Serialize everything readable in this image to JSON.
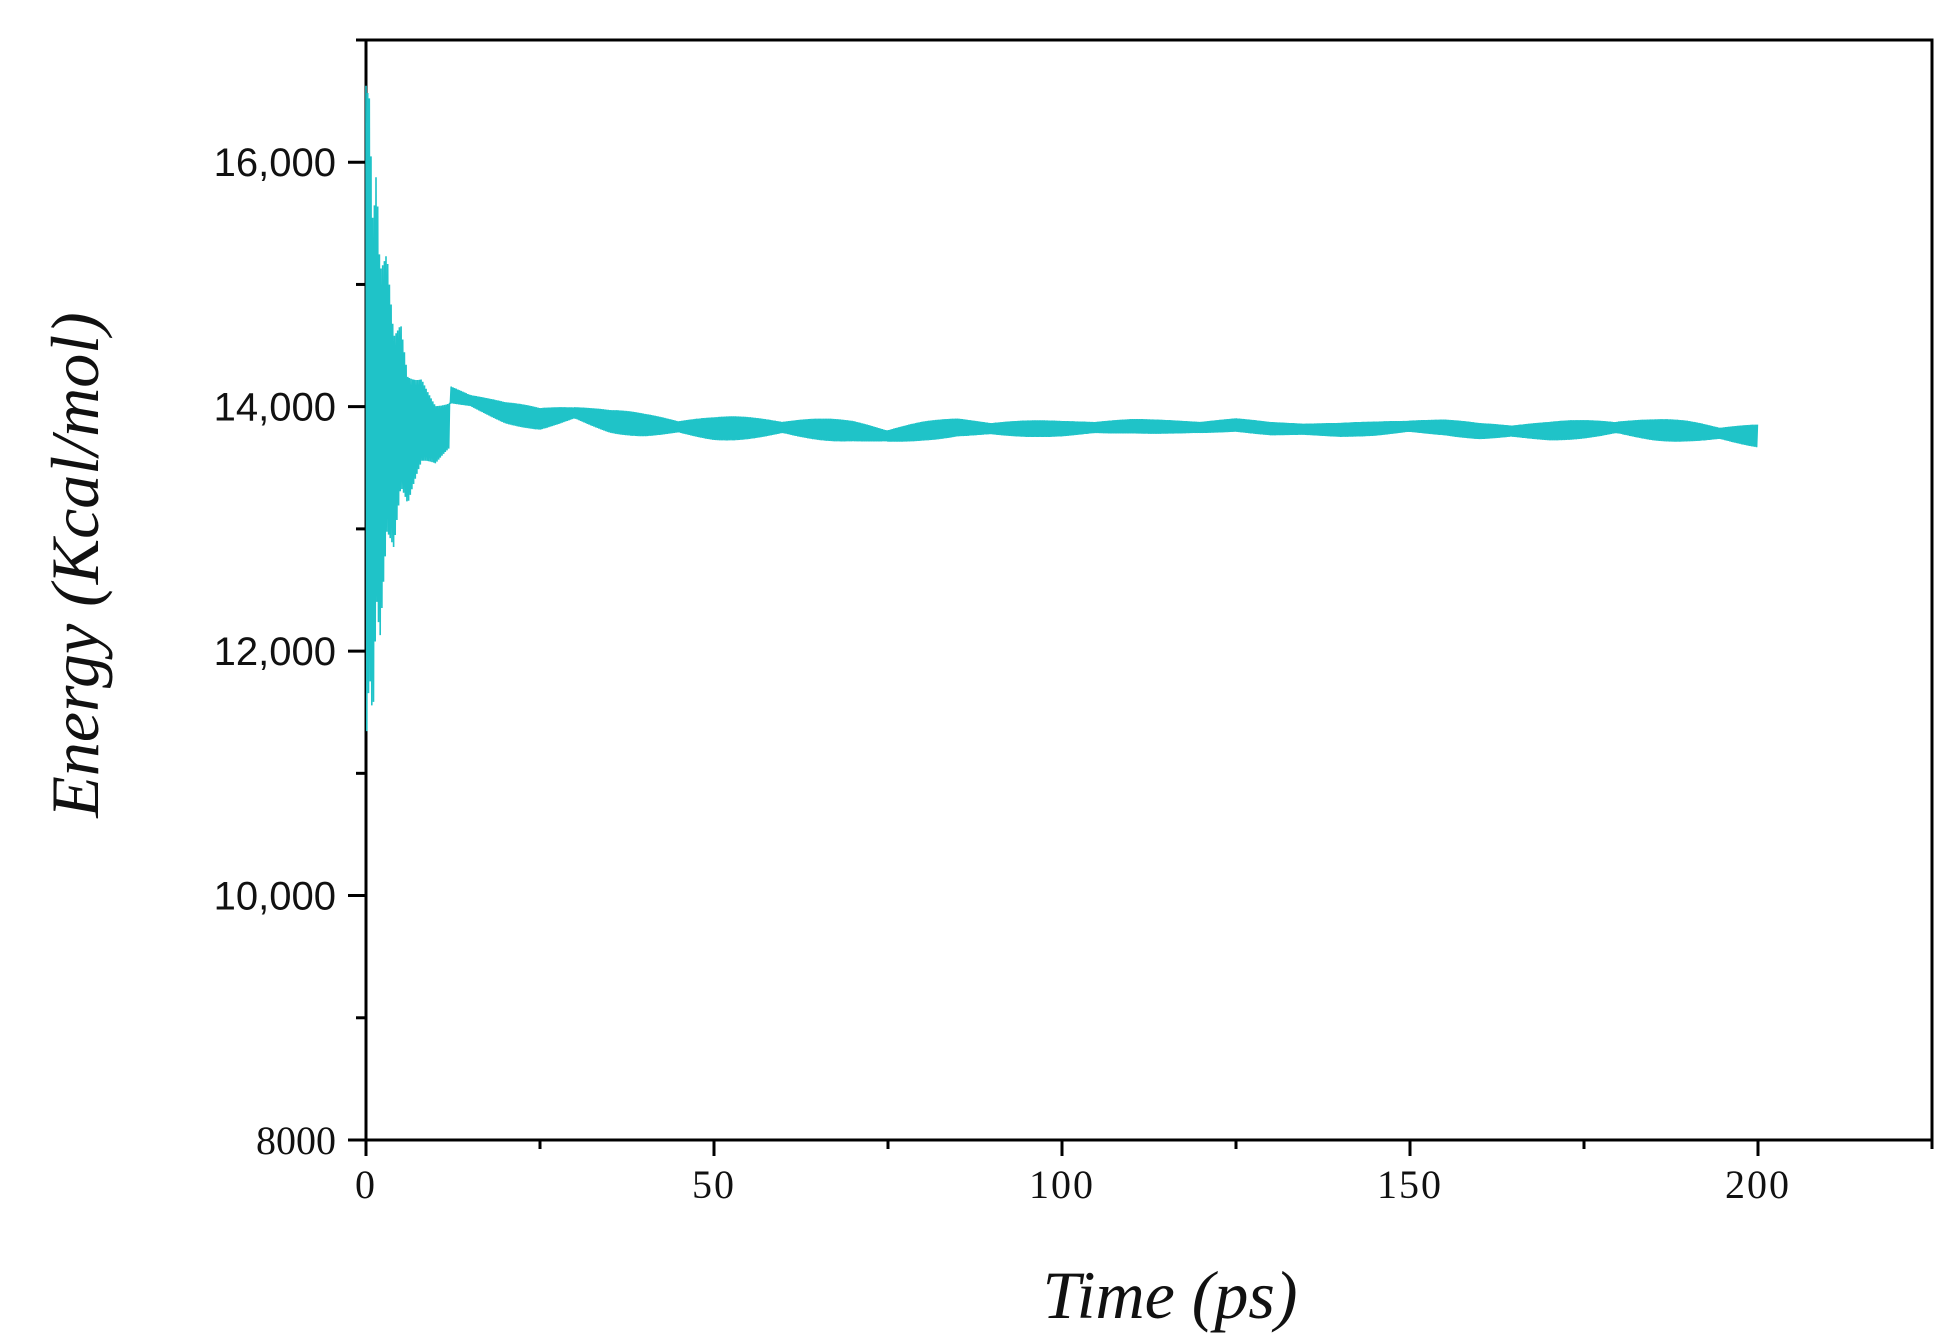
{
  "chart_data": {
    "type": "line",
    "title": "",
    "xlabel": "Time (ps)",
    "ylabel": "Energy (Kcal/mol)",
    "xlim": [
      0,
      225
    ],
    "ylim": [
      8000,
      17000
    ],
    "x_ticks": [
      0,
      50,
      100,
      150,
      200
    ],
    "x_tick_labels": [
      "0",
      "50",
      "100",
      "150",
      "200"
    ],
    "y_ticks": [
      8000,
      10000,
      12000,
      14000,
      16000
    ],
    "y_tick_labels": [
      "8000",
      "10,000",
      "12,000",
      "14,000",
      "16,000"
    ],
    "grid": false,
    "legend": "none",
    "line_color": "#1fc3c8",
    "series": [
      {
        "x": [
          0,
          0.5,
          1,
          1.5,
          2,
          3,
          4,
          5,
          6,
          8,
          10,
          12,
          15,
          20,
          25,
          30,
          35,
          40,
          50,
          60,
          70,
          75,
          80,
          85,
          90,
          95,
          100,
          110,
          120,
          125,
          130,
          140,
          145,
          150,
          155,
          160,
          170,
          180,
          185,
          190,
          195,
          200
        ],
        "y": [
          14500,
          16300,
          11400,
          16400,
          12500,
          15900,
          13200,
          15200,
          13300,
          14400,
          13600,
          14100,
          14050,
          13950,
          13900,
          13950,
          13880,
          13850,
          13820,
          13830,
          13800,
          13760,
          13800,
          13830,
          13820,
          13820,
          13820,
          13840,
          13830,
          13850,
          13820,
          13810,
          13820,
          13840,
          13830,
          13800,
          13800,
          13830,
          13810,
          13800,
          13780,
          13760
        ]
      }
    ]
  }
}
